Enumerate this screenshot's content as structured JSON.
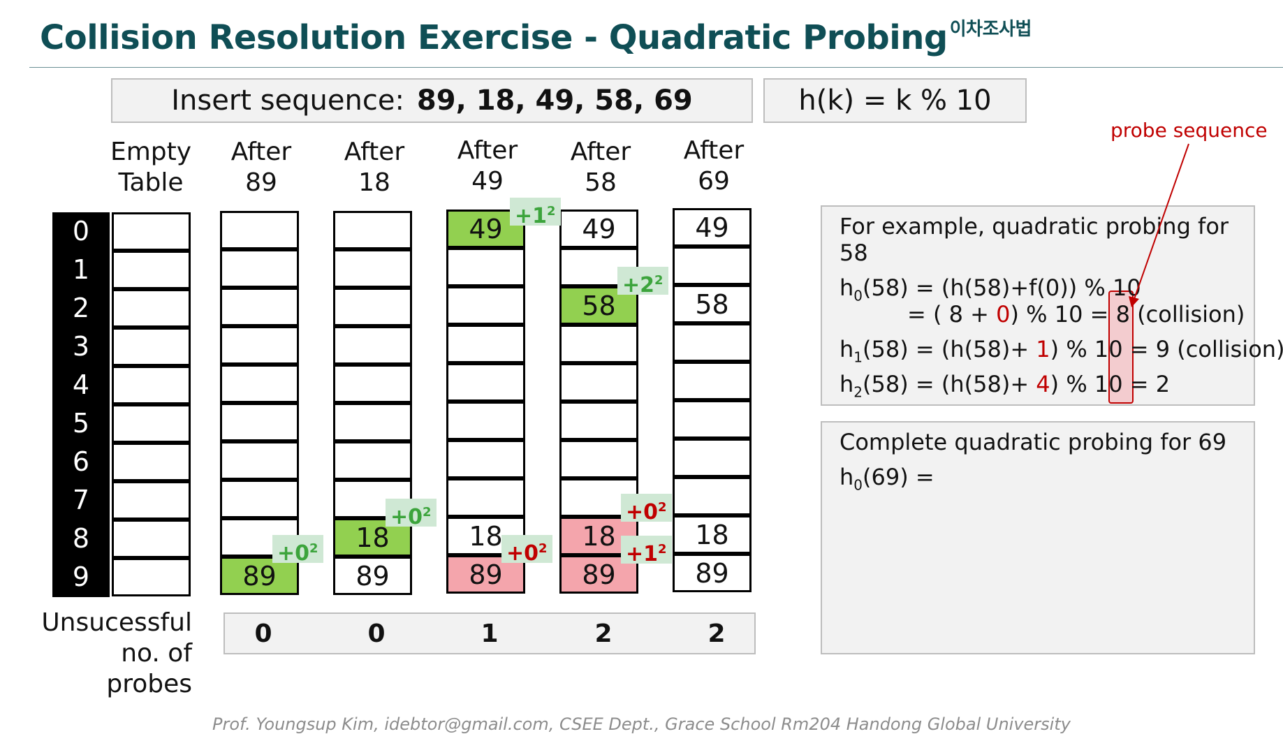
{
  "title": {
    "main": "Collision Resolution Exercise - Quadratic Probing",
    "korean": "이차조사법"
  },
  "insert": {
    "label": "Insert sequence:",
    "sequence": "89, 18, 49, 58, 69"
  },
  "hash_function": "h(k) = k % 10",
  "columns": [
    {
      "line1": "Empty",
      "line2": "Table"
    },
    {
      "line1": "After",
      "line2": "89"
    },
    {
      "line1": "After",
      "line2": "18"
    },
    {
      "line1": "After",
      "line2": "49"
    },
    {
      "line1": "After",
      "line2": "58"
    },
    {
      "line1": "After",
      "line2": "69"
    }
  ],
  "indices": [
    "0",
    "1",
    "2",
    "3",
    "4",
    "5",
    "6",
    "7",
    "8",
    "9"
  ],
  "tables": [
    [
      "",
      "",
      "",
      "",
      "",
      "",
      "",
      "",
      "",
      ""
    ],
    [
      "",
      "",
      "",
      "",
      "",
      "",
      "",
      "",
      "",
      "89"
    ],
    [
      "",
      "",
      "",
      "",
      "",
      "",
      "",
      "",
      "18",
      "89"
    ],
    [
      "49",
      "",
      "",
      "",
      "",
      "",
      "",
      "",
      "18",
      "89"
    ],
    [
      "49",
      "",
      "58",
      "",
      "",
      "",
      "",
      "",
      "18",
      "89"
    ],
    [
      "49",
      "",
      "58",
      "",
      "",
      "",
      "",
      "",
      "18",
      "89"
    ]
  ],
  "cell_colors": {
    "green": "#92d050",
    "pink": "#f4a5ac"
  },
  "probe_tags": [
    {
      "table": 1,
      "text": "+0",
      "exp": "2",
      "color": "green"
    },
    {
      "table": 2,
      "text": "+0",
      "exp": "2",
      "color": "green"
    },
    {
      "table": 3,
      "text": "+1",
      "exp": "2",
      "color": "green"
    },
    {
      "table": 3,
      "text": "+0",
      "exp": "2",
      "color": "red"
    },
    {
      "table": 4,
      "text": "+2",
      "exp": "2",
      "color": "green"
    },
    {
      "table": 4,
      "text": "+0",
      "exp": "2",
      "color": "red"
    },
    {
      "table": 4,
      "text": "+1",
      "exp": "2",
      "color": "red"
    }
  ],
  "probes": {
    "label_line1": "Unsucessful",
    "label_line2": "no. of probes",
    "values": [
      "0",
      "0",
      "1",
      "2",
      "2"
    ]
  },
  "example": {
    "intro1": "For example, quadratic  probing for",
    "intro2": "58",
    "l1_a": "h",
    "l1_sub": "0",
    "l1_b": "(58) = (h(58)+f(0)) % 10",
    "l2_a": "= (      8 + ",
    "l2_red": "0",
    "l2_b": ") % 10 = 8 (collision)",
    "l3_a": "h",
    "l3_sub": "1",
    "l3_b": "(58) = (h(58)+ ",
    "l3_red": "1",
    "l3_c": ") % 10 = 9 (collision)",
    "l4_a": "h",
    "l4_sub": "2",
    "l4_b": "(58) = (h(58)+ ",
    "l4_red": "4",
    "l4_c": ") % 10 = 2"
  },
  "probe_sequence_label": "probe sequence",
  "complete": {
    "line1": "Complete quadratic probing for 69",
    "l2_a": "h",
    "l2_sub": "0",
    "l2_b": "(69) ="
  },
  "footer": "Prof. Youngsup Kim, idebtor@gmail.com, CSEE Dept., Grace School Rm204 Handong Global University"
}
